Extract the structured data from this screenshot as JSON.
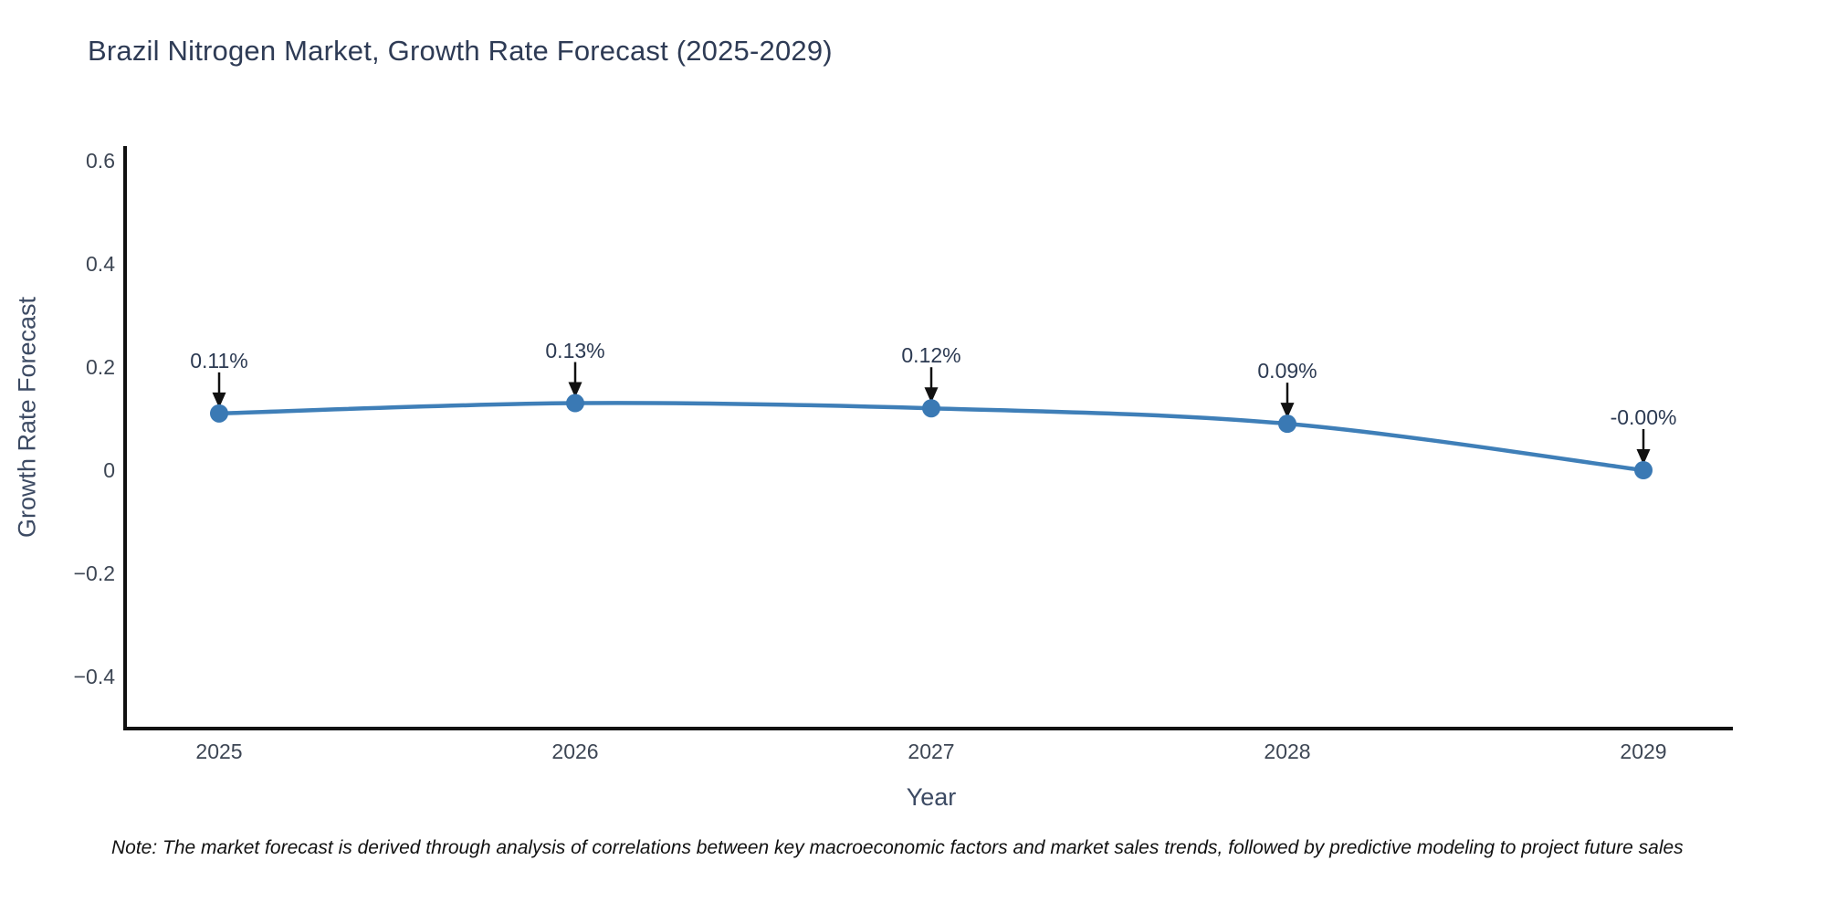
{
  "title": "Brazil Nitrogen Market, Growth Rate Forecast (2025-2029)",
  "note": "Note: The market forecast is derived through analysis of correlations between key macroeconomic factors and market sales trends, followed by predictive modeling to project future sales",
  "chart_data": {
    "type": "line",
    "title": "Brazil Nitrogen Market, Growth Rate Forecast (2025-2029)",
    "xlabel": "Year",
    "ylabel": "Growth Rate Forecast",
    "x": [
      "2025",
      "2026",
      "2027",
      "2028",
      "2029"
    ],
    "series": [
      {
        "name": "Growth Rate Forecast",
        "values": [
          0.11,
          0.13,
          0.12,
          0.09,
          -0.0
        ],
        "point_labels": [
          "0.11%",
          "0.13%",
          "0.12%",
          "0.09%",
          "-0.00%"
        ]
      }
    ],
    "y_ticks": [
      0.6,
      0.4,
      0.2,
      0,
      -0.2,
      -0.4
    ],
    "y_tick_labels": [
      "0.6",
      "0.4",
      "0.2",
      "0",
      "−0.2",
      "−0.4"
    ],
    "ylim": [
      -0.5,
      0.63
    ],
    "grid": false,
    "legend": "none",
    "annotation_arrows": true,
    "colors": {
      "line": "#3f7fb8",
      "marker": "#3a79b4",
      "axis": "#111111",
      "arrow": "#111111",
      "title_text": "#2e3b55",
      "tick_text": "#3d4654",
      "axis_title_text": "#3c4a63",
      "annotation_text": "#2c3a52",
      "note_text": "#111111"
    }
  }
}
